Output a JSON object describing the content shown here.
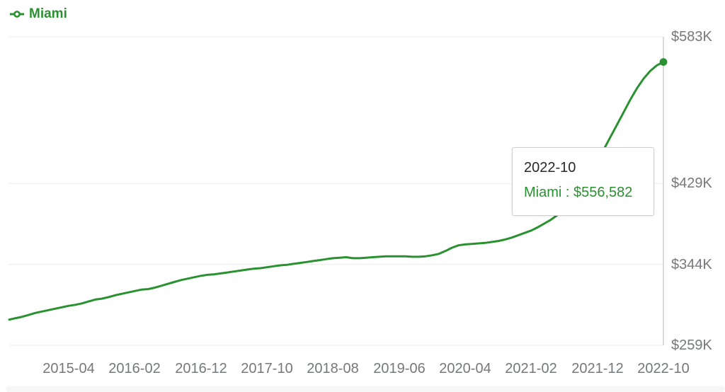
{
  "colors": {
    "accent_green": "#2a9130",
    "axis_text": "#75787b",
    "tooltip_date_text": "#26282a",
    "grid_line": "#ebebeb",
    "axis_line": "#d9dadb",
    "tooltip_border": "#cfcfcf",
    "scrollbar_track": "#f6f6f7",
    "background": "#ffffff"
  },
  "legend": {
    "marker": "line-with-circle-marker-icon",
    "label": "Miami"
  },
  "tooltip": {
    "date": "2022-10",
    "value_line": "Miami : $556,582"
  },
  "chart_data": {
    "type": "line",
    "title": "",
    "xlabel": "",
    "ylabel": "",
    "grid": "horizontal",
    "legend_position": "top-left",
    "ylim_usd": [
      259000,
      583000
    ],
    "y_ticks_usd": [
      583000,
      429000,
      344000,
      259000
    ],
    "y_tick_labels": [
      "$583K",
      "$429K",
      "$344K",
      "$259K"
    ],
    "x_tick_labels": [
      "2015-04",
      "2016-02",
      "2016-12",
      "2017-10",
      "2018-08",
      "2019-06",
      "2020-04",
      "2021-02",
      "2021-12",
      "2022-10"
    ],
    "tooltip": {
      "date": "2022-10",
      "series": "Miami",
      "value_usd": 556582
    },
    "series": [
      {
        "name": "Miami",
        "color": "#2a9130",
        "x": [
          "2014-07",
          "2014-08",
          "2014-09",
          "2014-10",
          "2014-11",
          "2014-12",
          "2015-01",
          "2015-02",
          "2015-03",
          "2015-04",
          "2015-05",
          "2015-06",
          "2015-07",
          "2015-08",
          "2015-09",
          "2015-10",
          "2015-11",
          "2015-12",
          "2016-01",
          "2016-02",
          "2016-03",
          "2016-04",
          "2016-05",
          "2016-06",
          "2016-07",
          "2016-08",
          "2016-09",
          "2016-10",
          "2016-11",
          "2016-12",
          "2017-01",
          "2017-02",
          "2017-03",
          "2017-04",
          "2017-05",
          "2017-06",
          "2017-07",
          "2017-08",
          "2017-09",
          "2017-10",
          "2017-11",
          "2017-12",
          "2018-01",
          "2018-02",
          "2018-03",
          "2018-04",
          "2018-05",
          "2018-06",
          "2018-07",
          "2018-08",
          "2018-09",
          "2018-10",
          "2018-11",
          "2018-12",
          "2019-01",
          "2019-02",
          "2019-03",
          "2019-04",
          "2019-05",
          "2019-06",
          "2019-07",
          "2019-08",
          "2019-09",
          "2019-10",
          "2019-11",
          "2019-12",
          "2020-01",
          "2020-02",
          "2020-03",
          "2020-04",
          "2020-05",
          "2020-06",
          "2020-07",
          "2020-08",
          "2020-09",
          "2020-10",
          "2020-11",
          "2020-12",
          "2021-01",
          "2021-02",
          "2021-03",
          "2021-04",
          "2021-05",
          "2021-06",
          "2021-07",
          "2021-08",
          "2021-09",
          "2021-10",
          "2021-11",
          "2021-12",
          "2022-01",
          "2022-02",
          "2022-03",
          "2022-04",
          "2022-05",
          "2022-06",
          "2022-07",
          "2022-08",
          "2022-09",
          "2022-10"
        ],
        "values_usd": [
          286000,
          287500,
          289000,
          291000,
          293000,
          294500,
          296000,
          297500,
          299000,
          300500,
          301500,
          303000,
          305000,
          307000,
          308000,
          309500,
          311500,
          313000,
          314500,
          316000,
          317500,
          318000,
          319500,
          321500,
          323500,
          325500,
          327500,
          329000,
          330500,
          332000,
          333000,
          333500,
          334500,
          335500,
          336500,
          337500,
          338500,
          339500,
          340000,
          341000,
          342000,
          343000,
          343500,
          344500,
          345500,
          346500,
          347500,
          348500,
          349500,
          350500,
          351000,
          351500,
          350500,
          350500,
          351000,
          351500,
          352000,
          352500,
          352500,
          352500,
          352500,
          352000,
          352000,
          352500,
          353500,
          355000,
          358000,
          361500,
          364000,
          365000,
          365500,
          366000,
          366500,
          367500,
          368500,
          370000,
          372000,
          374500,
          377000,
          379500,
          383000,
          387000,
          391000,
          396000,
          404000,
          412000,
          421000,
          431000,
          442000,
          453000,
          465000,
          478000,
          491000,
          504000,
          517000,
          529000,
          539000,
          547000,
          553000,
          556582
        ]
      }
    ]
  }
}
